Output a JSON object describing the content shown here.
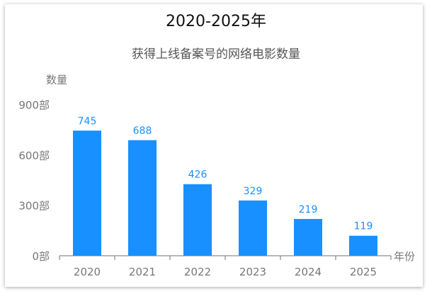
{
  "chart_data": {
    "type": "bar",
    "title": "2020-2025年",
    "subtitle": "获得上线备案号的网络电影数量",
    "ylabel": "数量",
    "xlabel": "年份",
    "categories": [
      "2020",
      "2021",
      "2022",
      "2023",
      "2024",
      "2025"
    ],
    "values": [
      745,
      688,
      426,
      329,
      219,
      119
    ],
    "yticks": [
      "0部",
      "300部",
      "600部",
      "900部"
    ],
    "ytick_values": [
      0,
      300,
      600,
      900
    ],
    "ylim": [
      0,
      900
    ],
    "grid": false,
    "bar_color": "#1890ff"
  }
}
